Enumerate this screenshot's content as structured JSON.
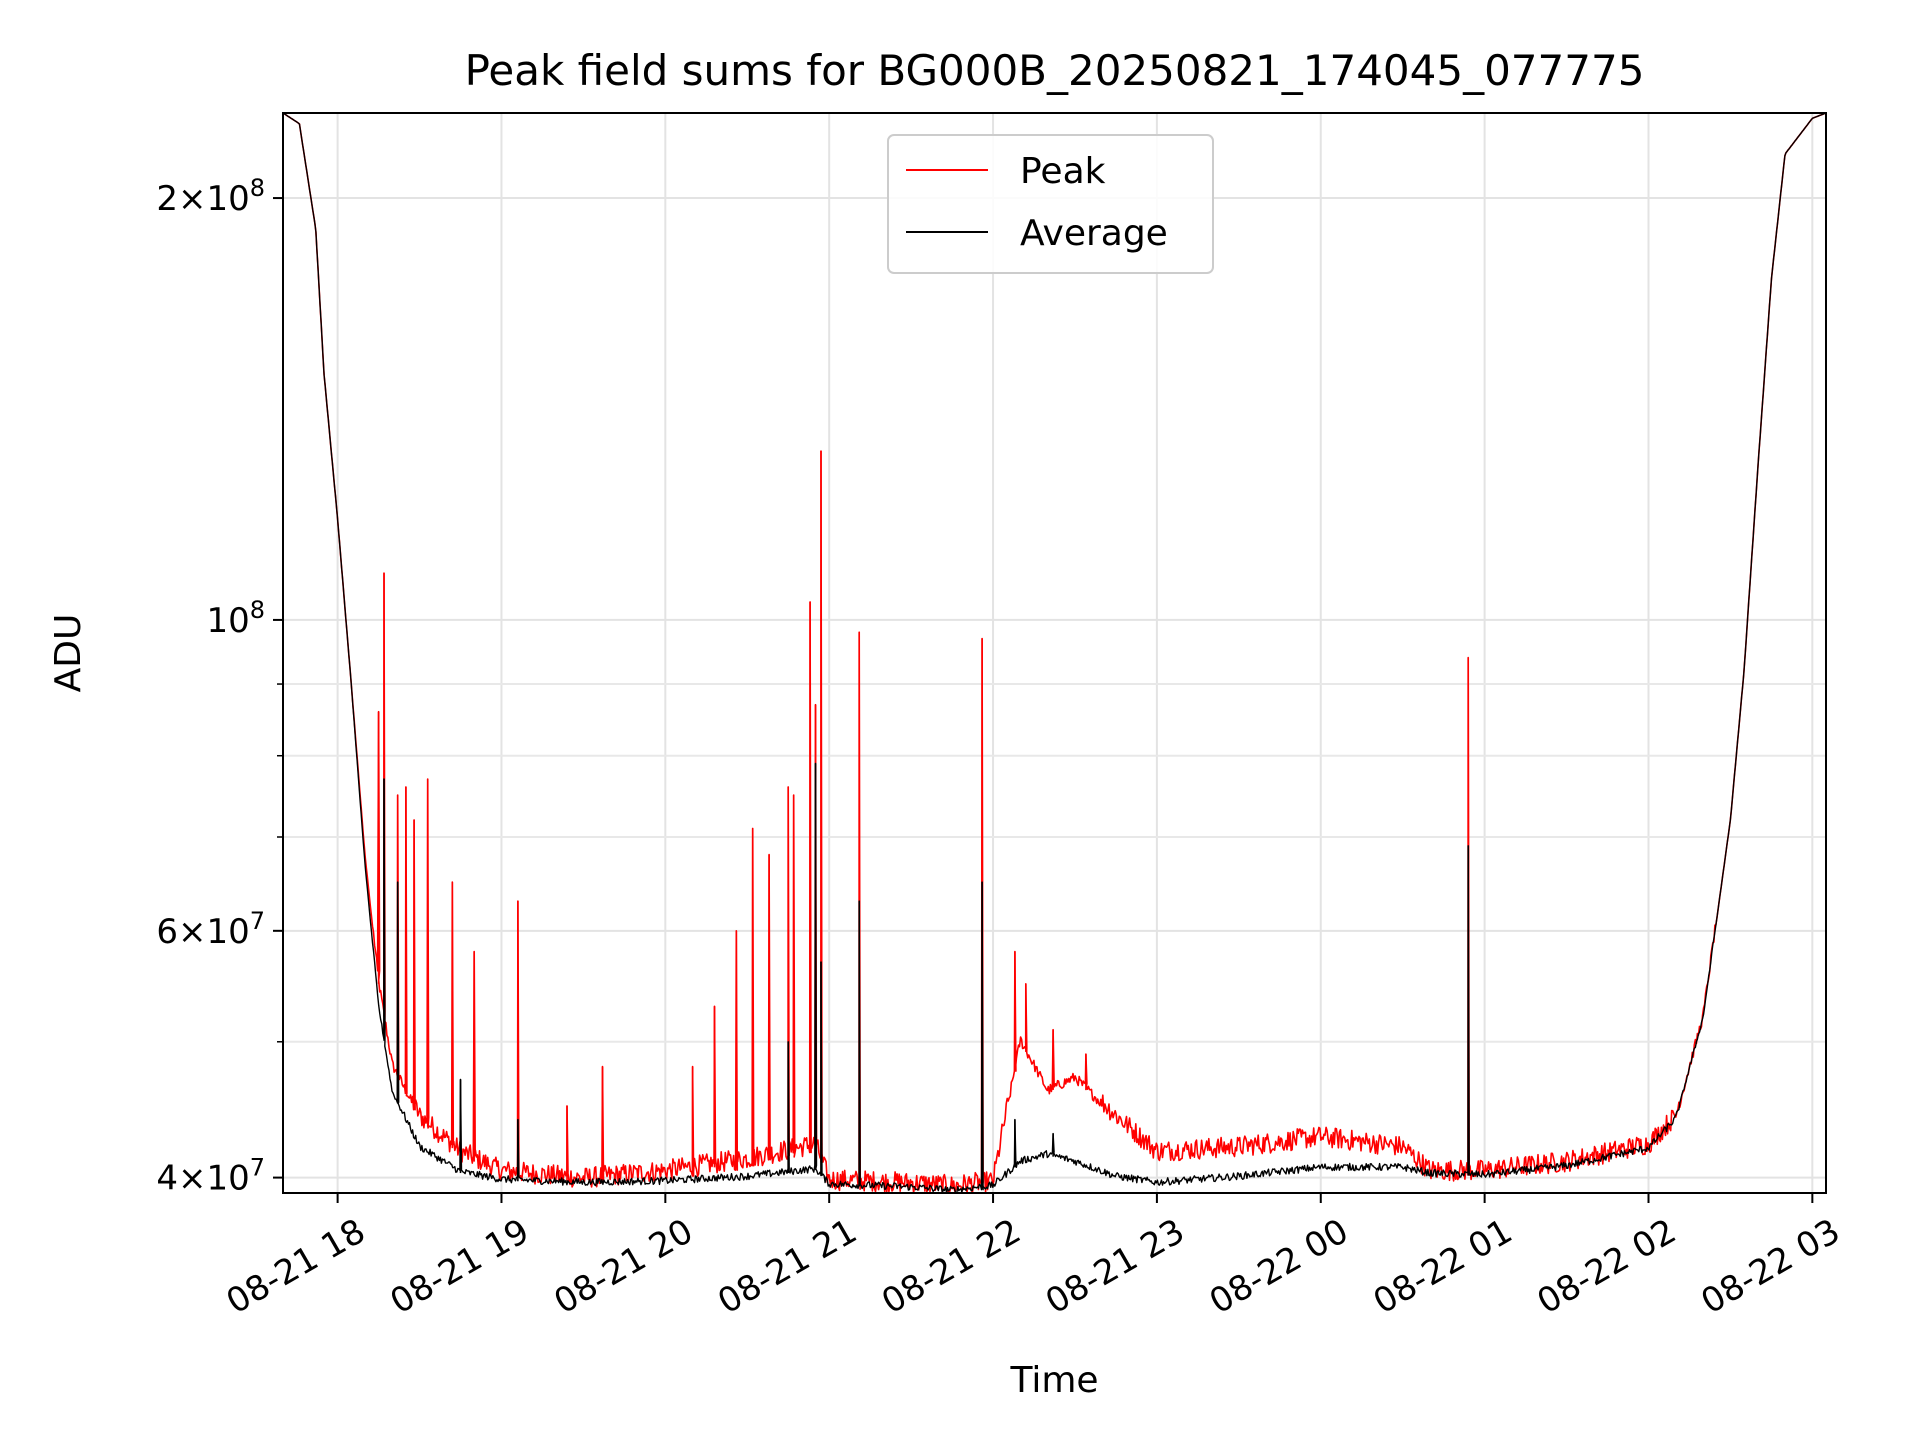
{
  "chart_data": {
    "type": "line",
    "title": "Peak field sums for BG000B_20250821_174045_077775",
    "xlabel": "Time",
    "ylabel": "ADU",
    "y_scale": "log",
    "xlim": [
      "2025-08-21 17:40",
      "2025-08-22 03:05"
    ],
    "ylim": [
      39000000,
      230000000
    ],
    "x_ticks": [
      {
        "value": "2025-08-21 18:00",
        "label": "08-21 18"
      },
      {
        "value": "2025-08-21 19:00",
        "label": "08-21 19"
      },
      {
        "value": "2025-08-21 20:00",
        "label": "08-21 20"
      },
      {
        "value": "2025-08-21 21:00",
        "label": "08-21 21"
      },
      {
        "value": "2025-08-21 22:00",
        "label": "08-21 22"
      },
      {
        "value": "2025-08-21 23:00",
        "label": "08-21 23"
      },
      {
        "value": "2025-08-22 00:00",
        "label": "08-22 00"
      },
      {
        "value": "2025-08-22 01:00",
        "label": "08-22 01"
      },
      {
        "value": "2025-08-22 02:00",
        "label": "08-22 02"
      },
      {
        "value": "2025-08-22 03:00",
        "label": "08-22 03"
      }
    ],
    "y_major_ticks": [
      {
        "value": 40000000,
        "mantissa": "4",
        "exponent": "7"
      },
      {
        "value": 60000000,
        "mantissa": "6",
        "exponent": "7"
      },
      {
        "value": 100000000,
        "mantissa": "",
        "exponent": "8"
      },
      {
        "value": 200000000,
        "mantissa": "2",
        "exponent": "8"
      }
    ],
    "y_minor_ticks": [
      50000000,
      70000000,
      80000000,
      90000000
    ],
    "grid": true,
    "legend_position": "top-center",
    "series": [
      {
        "name": "Peak",
        "color": "#ff0000",
        "points": [
          [
            "2025-08-21 17:40",
            230000000
          ],
          [
            "2025-08-21 17:46",
            226000000
          ],
          [
            "2025-08-21 17:52",
            190000000
          ],
          [
            "2025-08-21 17:55",
            150000000
          ],
          [
            "2025-08-21 18:00",
            118000000
          ],
          [
            "2025-08-21 18:05",
            90000000
          ],
          [
            "2025-08-21 18:10",
            68000000
          ],
          [
            "2025-08-21 18:15",
            55000000
          ],
          [
            "2025-08-21 18:20",
            48000000
          ],
          [
            "2025-08-21 18:30",
            44000000
          ],
          [
            "2025-08-21 18:45",
            41500000
          ],
          [
            "2025-08-21 19:00",
            40200000
          ],
          [
            "2025-08-21 19:30",
            39700000
          ],
          [
            "2025-08-21 20:00",
            40200000
          ],
          [
            "2025-08-21 20:30",
            41000000
          ],
          [
            "2025-08-21 20:55",
            42000000
          ],
          [
            "2025-08-21 21:00",
            39600000
          ],
          [
            "2025-08-21 21:30",
            39400000
          ],
          [
            "2025-08-21 21:45",
            39200000
          ],
          [
            "2025-08-21 22:00",
            39500000
          ],
          [
            "2025-08-21 22:10",
            50000000
          ],
          [
            "2025-08-21 22:20",
            46000000
          ],
          [
            "2025-08-21 22:30",
            47000000
          ],
          [
            "2025-08-21 22:45",
            44000000
          ],
          [
            "2025-08-21 23:00",
            41500000
          ],
          [
            "2025-08-21 23:30",
            41800000
          ],
          [
            "2025-08-22 00:00",
            42500000
          ],
          [
            "2025-08-22 00:30",
            41800000
          ],
          [
            "2025-08-22 00:40",
            40200000
          ],
          [
            "2025-08-22 01:00",
            40200000
          ],
          [
            "2025-08-22 01:30",
            40800000
          ],
          [
            "2025-08-22 02:00",
            42000000
          ],
          [
            "2025-08-22 02:10",
            44000000
          ],
          [
            "2025-08-22 02:20",
            52000000
          ],
          [
            "2025-08-22 02:30",
            72000000
          ],
          [
            "2025-08-22 02:35",
            92000000
          ],
          [
            "2025-08-22 02:40",
            128000000
          ],
          [
            "2025-08-22 02:45",
            175000000
          ],
          [
            "2025-08-22 02:50",
            215000000
          ],
          [
            "2025-08-22 03:00",
            228000000
          ],
          [
            "2025-08-22 03:05",
            230000000
          ]
        ],
        "spikes": [
          [
            "2025-08-21 18:15",
            86000000
          ],
          [
            "2025-08-21 18:17",
            108000000
          ],
          [
            "2025-08-21 18:22",
            75000000
          ],
          [
            "2025-08-21 18:25",
            76000000
          ],
          [
            "2025-08-21 18:28",
            72000000
          ],
          [
            "2025-08-21 18:33",
            77000000
          ],
          [
            "2025-08-21 18:42",
            65000000
          ],
          [
            "2025-08-21 18:50",
            58000000
          ],
          [
            "2025-08-21 19:06",
            63000000
          ],
          [
            "2025-08-21 19:24",
            45000000
          ],
          [
            "2025-08-21 19:37",
            48000000
          ],
          [
            "2025-08-21 20:10",
            48000000
          ],
          [
            "2025-08-21 20:18",
            53000000
          ],
          [
            "2025-08-21 20:26",
            60000000
          ],
          [
            "2025-08-21 20:32",
            71000000
          ],
          [
            "2025-08-21 20:38",
            68000000
          ],
          [
            "2025-08-21 20:45",
            76000000
          ],
          [
            "2025-08-21 20:47",
            75000000
          ],
          [
            "2025-08-21 20:53",
            103000000
          ],
          [
            "2025-08-21 20:55",
            87000000
          ],
          [
            "2025-08-21 20:57",
            132000000
          ],
          [
            "2025-08-21 21:11",
            98000000
          ],
          [
            "2025-08-21 21:56",
            97000000
          ],
          [
            "2025-08-21 22:08",
            58000000
          ],
          [
            "2025-08-21 22:12",
            55000000
          ],
          [
            "2025-08-21 22:22",
            51000000
          ],
          [
            "2025-08-21 22:34",
            49000000
          ],
          [
            "2025-08-22 00:54",
            94000000
          ],
          [
            "2025-08-22 01:45",
            41500000
          ]
        ]
      },
      {
        "name": "Average",
        "color": "#000000",
        "points": [
          [
            "2025-08-21 17:40",
            230000000
          ],
          [
            "2025-08-21 17:46",
            226000000
          ],
          [
            "2025-08-21 17:52",
            190000000
          ],
          [
            "2025-08-21 17:55",
            150000000
          ],
          [
            "2025-08-21 18:00",
            118000000
          ],
          [
            "2025-08-21 18:05",
            90000000
          ],
          [
            "2025-08-21 18:10",
            67000000
          ],
          [
            "2025-08-21 18:15",
            53000000
          ],
          [
            "2025-08-21 18:20",
            46000000
          ],
          [
            "2025-08-21 18:30",
            42000000
          ],
          [
            "2025-08-21 18:45",
            40300000
          ],
          [
            "2025-08-21 19:00",
            39800000
          ],
          [
            "2025-08-21 19:30",
            39600000
          ],
          [
            "2025-08-21 20:00",
            39700000
          ],
          [
            "2025-08-21 20:30",
            40000000
          ],
          [
            "2025-08-21 20:55",
            40500000
          ],
          [
            "2025-08-21 21:00",
            39500000
          ],
          [
            "2025-08-21 21:30",
            39300000
          ],
          [
            "2025-08-21 21:45",
            39100000
          ],
          [
            "2025-08-21 22:00",
            39400000
          ],
          [
            "2025-08-21 22:10",
            41000000
          ],
          [
            "2025-08-21 22:20",
            41500000
          ],
          [
            "2025-08-21 22:30",
            41000000
          ],
          [
            "2025-08-21 22:45",
            40000000
          ],
          [
            "2025-08-21 23:00",
            39600000
          ],
          [
            "2025-08-21 23:30",
            40000000
          ],
          [
            "2025-08-22 00:00",
            40600000
          ],
          [
            "2025-08-22 00:30",
            40600000
          ],
          [
            "2025-08-22 00:40",
            40200000
          ],
          [
            "2025-08-22 01:00",
            40100000
          ],
          [
            "2025-08-22 01:30",
            40700000
          ],
          [
            "2025-08-22 02:00",
            41900000
          ],
          [
            "2025-08-22 02:10",
            44000000
          ],
          [
            "2025-08-22 02:20",
            52000000
          ],
          [
            "2025-08-22 02:30",
            72000000
          ],
          [
            "2025-08-22 02:35",
            92000000
          ],
          [
            "2025-08-22 02:40",
            128000000
          ],
          [
            "2025-08-22 02:45",
            175000000
          ],
          [
            "2025-08-22 02:50",
            215000000
          ],
          [
            "2025-08-22 03:00",
            228000000
          ],
          [
            "2025-08-22 03:05",
            230000000
          ]
        ],
        "spikes": [
          [
            "2025-08-21 18:17",
            77000000
          ],
          [
            "2025-08-21 18:22",
            65000000
          ],
          [
            "2025-08-21 18:45",
            47000000
          ],
          [
            "2025-08-21 19:06",
            44000000
          ],
          [
            "2025-08-21 20:45",
            50000000
          ],
          [
            "2025-08-21 20:55",
            79000000
          ],
          [
            "2025-08-21 20:57",
            57000000
          ],
          [
            "2025-08-21 21:11",
            63000000
          ],
          [
            "2025-08-21 21:56",
            65000000
          ],
          [
            "2025-08-21 22:08",
            44000000
          ],
          [
            "2025-08-21 22:22",
            43000000
          ],
          [
            "2025-08-22 00:54",
            69000000
          ]
        ]
      }
    ]
  }
}
